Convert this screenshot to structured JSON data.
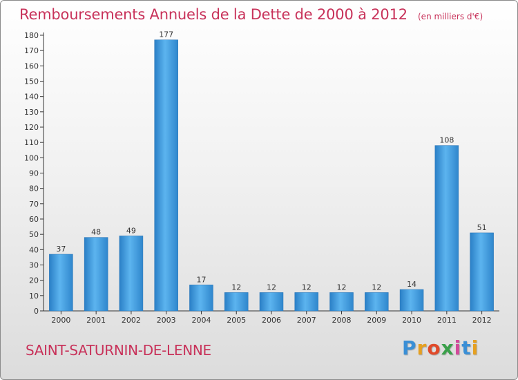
{
  "title": "Remboursements Annuels de la Dette de 2000 à 2012",
  "unit": "(en milliers d'€)",
  "commune": "SAINT-SATURNIN-DE-LENNE",
  "logo": {
    "letters": [
      "P",
      "r",
      "o",
      "x",
      "i",
      "t",
      "i"
    ],
    "colors": [
      "#3a8fd6",
      "#e6a020",
      "#e04a2a",
      "#3aa04a",
      "#d24a9a",
      "#3a8fd6",
      "#e6a020"
    ]
  },
  "colors": {
    "bar": "#3b95d9",
    "title": "#c8325a",
    "background": "#ececec"
  },
  "chart_data": {
    "type": "bar",
    "title": "Remboursements Annuels de la Dette de 2000 à 2012",
    "categories": [
      "2000",
      "2001",
      "2002",
      "2003",
      "2004",
      "2005",
      "2006",
      "2007",
      "2008",
      "2009",
      "2010",
      "2011",
      "2012"
    ],
    "values": [
      37,
      48,
      49,
      177,
      17,
      12,
      12,
      12,
      12,
      12,
      14,
      108,
      51
    ],
    "yticks": [
      "0",
      "10",
      "20",
      "30",
      "40",
      "50",
      "60",
      "70",
      "80",
      "90",
      "100",
      "110",
      "120",
      "130",
      "140",
      "150",
      "160",
      "170",
      "180"
    ],
    "ylim": [
      0,
      180
    ],
    "grid": false,
    "data_labels": true
  }
}
